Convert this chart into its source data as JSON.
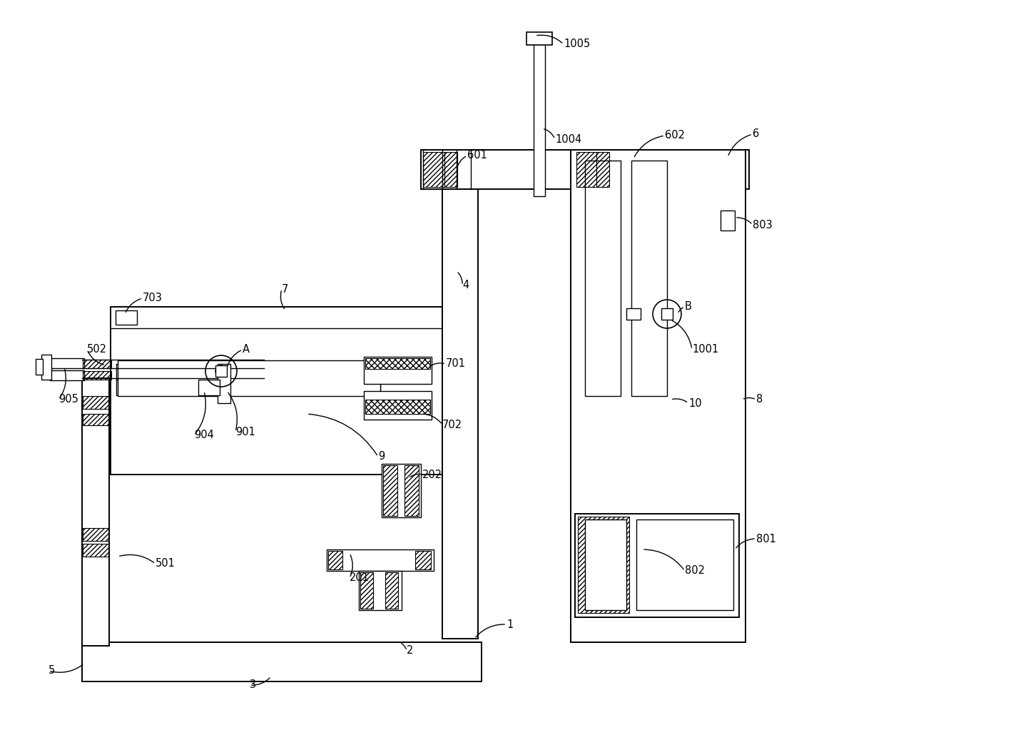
{
  "bg_color": "#ffffff",
  "lc": "#000000",
  "fs": 10.5,
  "lw": 1.4,
  "lw_thin": 1.0
}
